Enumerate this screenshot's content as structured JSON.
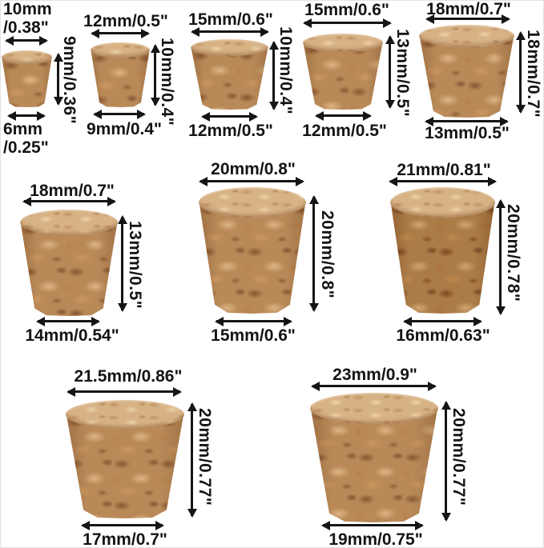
{
  "meta": {
    "type": "cork-stopper-size-diagram",
    "background_color": "#ffffff",
    "annotation_color": "#141414",
    "cork_side_color": "#b98a58",
    "cork_top_color": "#d7b285",
    "units": "mm / inches"
  },
  "corks": [
    {
      "name": "cork-1",
      "top_label": "10mm\n/0.38\"",
      "height_label": "9mm/0.36\"",
      "bottom_label": "6mm\n/0.25\"",
      "top_mm": 10,
      "height_mm": 9,
      "bottom_mm": 6
    },
    {
      "name": "cork-2",
      "top_label": "12mm/0.5\"",
      "height_label": "10mm/0.4\"",
      "bottom_label": "9mm/0.4\"",
      "top_mm": 12,
      "height_mm": 10,
      "bottom_mm": 9
    },
    {
      "name": "cork-3",
      "top_label": "15mm/0.6\"",
      "height_label": "10mm/0.4\"",
      "bottom_label": "12mm/0.5\"",
      "top_mm": 15,
      "height_mm": 10,
      "bottom_mm": 12
    },
    {
      "name": "cork-4",
      "top_label": "15mm/0.6\"",
      "height_label": "13mm/0.5\"",
      "bottom_label": "12mm/0.5\"",
      "top_mm": 15,
      "height_mm": 13,
      "bottom_mm": 12
    },
    {
      "name": "cork-5",
      "top_label": "18mm/0.7\"",
      "height_label": "18mm/0.7\"",
      "bottom_label": "13mm/0.5\"",
      "top_mm": 18,
      "height_mm": 18,
      "bottom_mm": 13
    },
    {
      "name": "cork-6",
      "top_label": "18mm/0.7\"",
      "height_label": "13mm/0.5\"",
      "bottom_label": "14mm/0.54\"",
      "top_mm": 18,
      "height_mm": 13,
      "bottom_mm": 14
    },
    {
      "name": "cork-7",
      "top_label": "20mm/0.8\"",
      "height_label": "20mm/0.8\"",
      "bottom_label": "15mm/0.6\"",
      "top_mm": 20,
      "height_mm": 20,
      "bottom_mm": 15
    },
    {
      "name": "cork-8",
      "top_label": "21mm/0.81\"",
      "height_label": "20mm/0.78\"",
      "bottom_label": "16mm/0.63\"",
      "top_mm": 21,
      "height_mm": 20,
      "bottom_mm": 16
    },
    {
      "name": "cork-9",
      "top_label": "21.5mm/0.86\"",
      "height_label": "20mm/0.77\"",
      "bottom_label": "17mm/0.7\"",
      "top_mm": 21.5,
      "height_mm": 20,
      "bottom_mm": 17
    },
    {
      "name": "cork-10",
      "top_label": "23mm/0.9\"",
      "height_label": "20mm/0.77\"",
      "bottom_label": "19mm/0.75\"",
      "top_mm": 23,
      "height_mm": 20,
      "bottom_mm": 19
    }
  ]
}
